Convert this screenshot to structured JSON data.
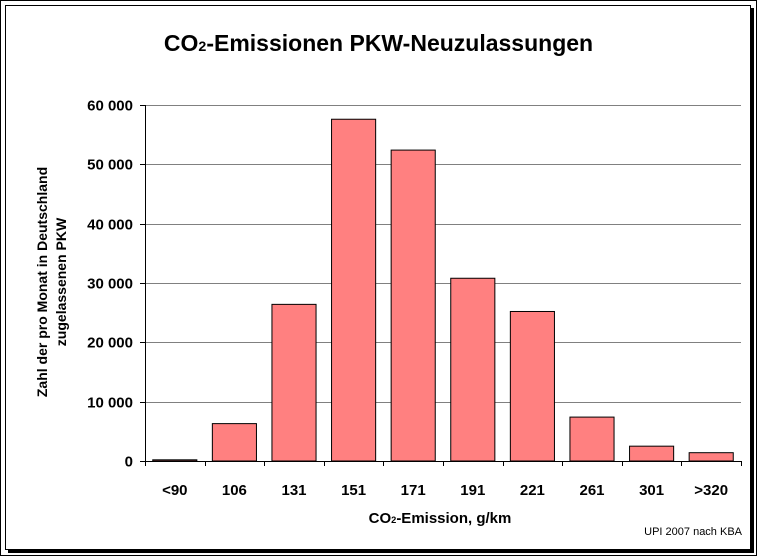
{
  "chart_data": {
    "type": "bar",
    "title_main": "CO",
    "title_sub": "2",
    "title_rest": "-Emissionen PKW-Neuzulassungen",
    "xlabel_main": "CO",
    "xlabel_sub": "2",
    "xlabel_rest": "-Emission, g/km",
    "ylabel_line1": "Zahl der pro Monat in Deutschland",
    "ylabel_line2": "zugelassenen PKW",
    "categories": [
      "<90",
      "106",
      "131",
      "151",
      "171",
      "191",
      "221",
      "261",
      "301",
      ">320"
    ],
    "values": [
      200,
      6300,
      26400,
      57600,
      52400,
      30800,
      25200,
      7400,
      2500,
      1400
    ],
    "ylim": [
      0,
      60000
    ],
    "yticks": [
      0,
      10000,
      20000,
      30000,
      40000,
      50000,
      60000
    ],
    "ytick_labels": [
      "0",
      "10 000",
      "20 000",
      "30 000",
      "40 000",
      "50 000",
      "60 000"
    ],
    "grid": true,
    "bar_color": "#FF8080",
    "credit": "UPI 2007 nach KBA"
  }
}
